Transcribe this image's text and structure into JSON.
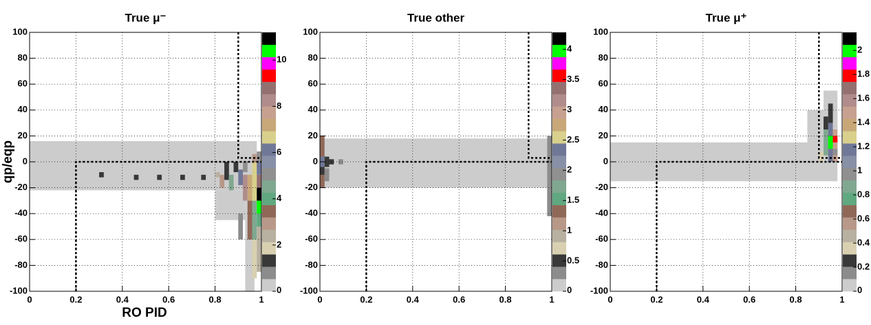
{
  "chart_data": [
    {
      "type": "heatmap",
      "title": "True μ⁻",
      "x_label": "RO PID",
      "y_label": "qp/eqp",
      "xlim": [
        0,
        1
      ],
      "xticks": [
        0,
        0.2,
        0.4,
        0.6,
        0.8,
        1
      ],
      "ylim": [
        -100,
        100
      ],
      "yticks": [
        -100,
        -80,
        -60,
        -40,
        -20,
        0,
        20,
        40,
        60,
        80,
        100
      ],
      "zlim": [
        0,
        11.2
      ],
      "zticks": [
        0,
        2,
        4,
        6,
        8,
        10
      ],
      "grid": true,
      "palette": [
        "#cccccc",
        "#8c8c8c",
        "#383838",
        "#d8d0b0",
        "#b8b0a0",
        "#b89888",
        "#906858",
        "#60a880",
        "#80a890",
        "#909090",
        "#8890a8",
        "#707898",
        "#d8d08c",
        "#c8a878",
        "#c8a090",
        "#b08c8c",
        "#957070",
        "#ff0000",
        "#ff00ff",
        "#00ff00",
        "#000000"
      ],
      "x0": [
        0,
        0.8,
        0.93,
        0.3,
        0.45,
        0.55,
        0.65,
        0.74,
        0.8,
        0.82,
        0.84,
        0.86,
        0.88,
        0.9,
        0.92,
        0.94,
        0.94,
        0.96,
        0.96,
        0.96,
        0.98,
        0.98,
        0.98,
        0.98,
        0.98,
        0.98,
        0.98,
        0.96,
        0.92,
        0.9
      ],
      "x1": [
        0.98,
        0.93,
        0.97,
        0.32,
        0.47,
        0.57,
        0.67,
        0.76,
        0.82,
        0.84,
        0.86,
        0.88,
        0.9,
        0.92,
        0.94,
        0.96,
        0.96,
        0.98,
        0.98,
        0.98,
        1,
        1,
        1,
        1,
        1,
        1,
        1,
        0.98,
        0.94,
        0.92
      ],
      "y0": [
        -22,
        -45,
        -100,
        -12,
        -14,
        -14,
        -14,
        -14,
        -12,
        -20,
        -14,
        -22,
        -8,
        -18,
        -30,
        -60,
        -30,
        -90,
        -60,
        -30,
        -85,
        -50,
        -40,
        -30,
        -20,
        -10,
        0,
        0,
        -8,
        -60
      ],
      "y1": [
        16,
        -22,
        -22,
        -8,
        -10,
        -10,
        -10,
        -10,
        -8,
        -10,
        0,
        -10,
        0,
        -6,
        -10,
        -30,
        -10,
        -60,
        -30,
        0,
        -50,
        -40,
        -30,
        -20,
        -10,
        0,
        8,
        6,
        0,
        -40
      ],
      "values": [
        0.5,
        0.5,
        0.5,
        1.2,
        1.2,
        1.2,
        1.2,
        1.2,
        2.2,
        3,
        1.2,
        4.5,
        1.2,
        6,
        8,
        3.5,
        7,
        1.8,
        4.5,
        6.5,
        2.5,
        4,
        10.5,
        11,
        9,
        6,
        5,
        3,
        5,
        1
      ],
      "cut_lines": [
        {
          "x": [
            0.2,
            0.2,
            1
          ],
          "y": [
            -100,
            0,
            0
          ]
        },
        {
          "x": [
            0.9,
            0.9,
            1
          ],
          "y": [
            100,
            3,
            3
          ]
        }
      ]
    },
    {
      "type": "heatmap",
      "title": "True other",
      "xlim": [
        0,
        1
      ],
      "xticks": [
        0,
        0.2,
        0.4,
        0.6,
        0.8,
        1
      ],
      "ylim": [
        -100,
        100
      ],
      "yticks": [
        -100,
        -80,
        -60,
        -40,
        -20,
        0,
        20,
        40,
        60,
        80,
        100
      ],
      "zlim": [
        0,
        4.28
      ],
      "zticks": [
        0,
        0.5,
        1,
        1.5,
        2,
        2.5,
        3,
        3.5,
        4
      ],
      "grid": true,
      "palette": [
        "#cccccc",
        "#8c8c8c",
        "#383838",
        "#d8d0b0",
        "#b8b0a0",
        "#b89888",
        "#906858",
        "#60a880",
        "#80a890",
        "#909090",
        "#8890a8",
        "#707898",
        "#d8d08c",
        "#c8a878",
        "#c8a090",
        "#b08c8c",
        "#957070",
        "#ff0000",
        "#ff00ff",
        "#00ff00",
        "#000000"
      ],
      "x0": [
        0,
        0.98,
        0,
        0,
        0.02,
        0.04,
        0.08,
        0.02,
        0
      ],
      "x1": [
        0.98,
        1,
        0.02,
        0.02,
        0.04,
        0.06,
        0.1,
        0.04,
        0.02
      ],
      "y0": [
        -20,
        -42,
        -20,
        -10,
        -4,
        -2,
        -2,
        -15,
        -4
      ],
      "y1": [
        18,
        20,
        20,
        -4,
        4,
        2,
        2,
        -5,
        4
      ],
      "values": [
        0.1,
        0.3,
        1.3,
        0.5,
        0.5,
        0.5,
        0.3,
        0.3,
        2.3
      ],
      "cut_lines": [
        {
          "x": [
            0.2,
            0.2,
            1
          ],
          "y": [
            -100,
            0,
            0
          ]
        },
        {
          "x": [
            0.9,
            0.9,
            1
          ],
          "y": [
            100,
            3,
            3
          ]
        }
      ]
    },
    {
      "type": "heatmap",
      "title": "True μ⁺",
      "xlim": [
        0,
        1
      ],
      "xticks": [
        0,
        0.2,
        0.4,
        0.6,
        0.8,
        1
      ],
      "ylim": [
        -100,
        100
      ],
      "yticks": [
        -100,
        -80,
        -60,
        -40,
        -20,
        0,
        20,
        40,
        60,
        80,
        100
      ],
      "zlim": [
        0,
        2.15
      ],
      "zticks": [
        0,
        0.2,
        0.4,
        0.6,
        0.8,
        1,
        1.2,
        1.4,
        1.6,
        1.8,
        2
      ],
      "grid": true,
      "palette": [
        "#cccccc",
        "#8c8c8c",
        "#383838",
        "#d8d0b0",
        "#b8b0a0",
        "#b89888",
        "#906858",
        "#60a880",
        "#80a890",
        "#909090",
        "#8890a8",
        "#707898",
        "#d8d08c",
        "#c8a878",
        "#c8a090",
        "#b08c8c",
        "#957070",
        "#ff0000",
        "#ff00ff",
        "#00ff00",
        "#000000"
      ],
      "x0": [
        0,
        0.85,
        0.92,
        0.9,
        0.92,
        0.94,
        0.94,
        0.96,
        0.96,
        0.96,
        0.92,
        0.94
      ],
      "x1": [
        0.98,
        0.98,
        0.98,
        0.92,
        0.94,
        0.96,
        0.96,
        0.98,
        0.98,
        0.98,
        0.94,
        0.96
      ],
      "y0": [
        -15,
        5,
        0,
        0,
        5,
        0,
        10,
        0,
        15,
        5,
        25,
        30
      ],
      "y1": [
        15,
        40,
        55,
        8,
        25,
        30,
        20,
        25,
        20,
        10,
        35,
        45
      ],
      "values": [
        0.05,
        0.05,
        0.05,
        0.35,
        0.85,
        1.2,
        1.95,
        1.5,
        1.8,
        1.0,
        0.25,
        0.3
      ],
      "cut_lines": [
        {
          "x": [
            0.2,
            0.2,
            1
          ],
          "y": [
            -100,
            0,
            0
          ]
        },
        {
          "x": [
            0.9,
            0.9,
            1
          ],
          "y": [
            100,
            3,
            3
          ]
        }
      ]
    }
  ]
}
